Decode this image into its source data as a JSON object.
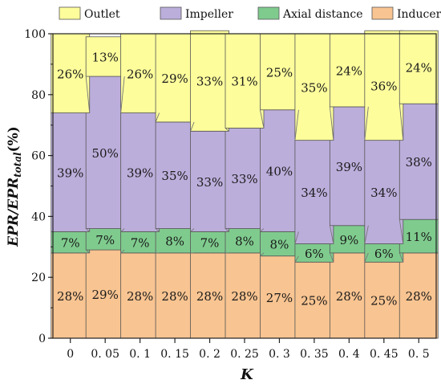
{
  "chart_data": {
    "type": "bar",
    "stacked": true,
    "xlabel": "K",
    "ylabel": {
      "main": "EPR/EPR",
      "sub": "total",
      "unit": "(%)"
    },
    "ylim": [
      0,
      100
    ],
    "yticks": [
      0,
      20,
      40,
      60,
      80,
      100
    ],
    "categories": [
      "0",
      "0. 05",
      "0. 1",
      "0. 15",
      "0. 2",
      "0. 25",
      "0. 3",
      "0. 35",
      "0. 4",
      "0. 45",
      "0. 5"
    ],
    "legend_position": "top",
    "series": [
      {
        "name": "Inducer",
        "color": "#F8C491",
        "values": [
          28,
          29,
          28,
          28,
          28,
          28,
          27,
          25,
          28,
          25,
          28
        ],
        "labels": [
          "28%",
          "29%",
          "28%",
          "28%",
          "28%",
          "28%",
          "27%",
          "25%",
          "28%",
          "25%",
          "28%"
        ]
      },
      {
        "name": "Axial distance",
        "color": "#7FCB8E",
        "values": [
          7,
          7,
          7,
          8,
          7,
          8,
          8,
          6,
          9,
          6,
          11
        ],
        "labels": [
          "7%",
          "7%",
          "7%",
          "8%",
          "7%",
          "8%",
          "8%",
          "6%",
          "9%",
          "6%",
          "11%"
        ]
      },
      {
        "name": "Impeller",
        "color": "#BCAEDB",
        "values": [
          39,
          50,
          39,
          35,
          33,
          33,
          40,
          34,
          39,
          34,
          38
        ],
        "labels": [
          "39%",
          "50%",
          "39%",
          "35%",
          "33%",
          "33%",
          "40%",
          "34%",
          "39%",
          "34%",
          "38%"
        ]
      },
      {
        "name": "Outlet",
        "color": "#FDFD9C",
        "values": [
          26,
          13,
          26,
          29,
          33,
          31,
          25,
          35,
          24,
          36,
          24
        ],
        "labels": [
          "26%",
          "13%",
          "26%",
          "29%",
          "33%",
          "31%",
          "25%",
          "35%",
          "24%",
          "36%",
          "24%"
        ]
      }
    ],
    "legend_order": [
      "Outlet",
      "Impeller",
      "Axial distance",
      "Inducer"
    ]
  }
}
